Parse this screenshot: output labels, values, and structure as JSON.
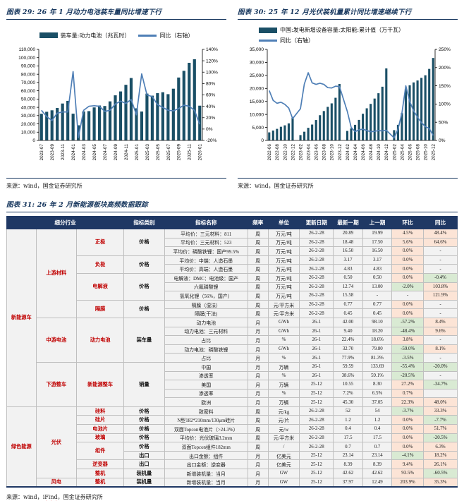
{
  "colors": {
    "navy": "#17375e",
    "header_bg": "#1f3864",
    "red": "#c00000",
    "bar": "#1a4f66",
    "line": "#4f7fb6",
    "peach": "#fce4d6",
    "green": "#d9ead3"
  },
  "figures": {
    "fig29": {
      "title": "图表 29: 26 年 1 月动力电池装车量同比增速下行",
      "legend_bar": "装车量:动力电池（兆瓦时）",
      "legend_line": "同比（右轴）",
      "source": "来源：wind，国金证券研究所"
    },
    "fig30": {
      "title": "图表 30: 25 年 12 月光伏装机量累计同比增速继续下行",
      "legend_bar": "中国:发电新增设备容量:太阳能:累计值（万千瓦）",
      "legend_line": "同比（右轴）",
      "source": "来源：wind，国金证券研究所"
    },
    "fig31": {
      "title": "图表 31: 26 年 2 月新能源板块高频数据跟踪",
      "source_prefix": "来源：wind，",
      "source_wavy": "iFind",
      "source_suffix": "，国金证券研究所"
    }
  },
  "chart_data": [
    {
      "type": "bar+line",
      "title": "26 年 1 月动力电池装车量同比增速下行",
      "x": [
        "2023-07",
        "2023-08",
        "2023-09",
        "2023-10",
        "2023-11",
        "2023-12",
        "2024-01",
        "2024-02",
        "2024-03",
        "2024-04",
        "2024-05",
        "2024-06",
        "2024-07",
        "2024-08",
        "2024-09",
        "2024-10",
        "2024-11",
        "2024-12",
        "2025-01",
        "2025-02",
        "2025-03",
        "2025-04",
        "2025-05",
        "2025-06",
        "2025-07",
        "2025-08",
        "2025-09",
        "2025-10",
        "2025-11",
        "2025-12",
        "2026-01"
      ],
      "series": [
        {
          "name": "装车量:动力电池（兆瓦时）",
          "type": "bar",
          "axis": "left",
          "values": [
            32200,
            34600,
            36400,
            39200,
            44600,
            47800,
            32300,
            18300,
            35000,
            35400,
            39900,
            42200,
            41600,
            47200,
            54500,
            59200,
            67200,
            75400,
            38800,
            34900,
            56600,
            54100,
            57100,
            58200,
            55900,
            62500,
            76000,
            84100,
            93800,
            98100,
            42000
          ]
        },
        {
          "name": "同比（右轴）",
          "type": "line",
          "axis": "right",
          "values": [
            33,
            22,
            15,
            28,
            30,
            30,
            101,
            -15,
            33,
            40,
            41,
            40,
            31,
            33,
            44,
            49,
            45,
            52,
            25,
            97,
            60,
            57,
            43,
            38,
            33,
            32,
            36,
            42,
            40,
            33,
            8.4
          ]
        }
      ],
      "left_axis": {
        "min": 0,
        "max": 110000,
        "step": 10000
      },
      "right_axis": {
        "min": -20,
        "max": 140,
        "step": 20,
        "unit": "%"
      },
      "x_tick_every": 2,
      "legend_position": "top",
      "grid": false
    },
    {
      "type": "bar+line",
      "title": "25 年 12 月光伏装机量累计同比增速继续下行",
      "x": [
        "2022-06",
        "2022-07",
        "2022-08",
        "2022-09",
        "2022-10",
        "2022-11",
        "2022-12",
        "2023-01",
        "2023-02",
        "2023-03",
        "2023-04",
        "2023-05",
        "2023-06",
        "2023-07",
        "2023-08",
        "2023-09",
        "2023-10",
        "2023-11",
        "2023-12",
        "2024-01",
        "2024-02",
        "2024-03",
        "2024-04",
        "2024-05",
        "2024-06",
        "2024-07",
        "2024-08",
        "2024-09",
        "2024-10",
        "2024-11",
        "2024-12",
        "2025-01",
        "2025-02",
        "2025-03",
        "2025-04",
        "2025-05",
        "2025-06",
        "2025-07",
        "2025-08",
        "2025-09",
        "2025-10",
        "2025-11",
        "2025-12"
      ],
      "series": [
        {
          "name": "中国:发电新增设备容量:太阳能:累计值（万千瓦）",
          "type": "bar",
          "axis": "left",
          "values": [
            3100,
            3800,
            4450,
            5250,
            5800,
            6550,
            8750,
            null,
            2050,
            3350,
            4850,
            6100,
            7850,
            9700,
            11300,
            12900,
            14250,
            16400,
            21700,
            null,
            3650,
            4600,
            6000,
            7900,
            10250,
            12350,
            14050,
            16100,
            18150,
            20650,
            27700,
            null,
            3950,
            6000,
            10500,
            19800,
            21200,
            22300,
            23050,
            24050,
            25050,
            27500,
            31700
          ]
        },
        {
          "name": "同比（右轴）",
          "type": "line",
          "axis": "right",
          "values": [
            137,
            110,
            102,
            105,
            99,
            89,
            60,
            null,
            87,
            155,
            186,
            158,
            154,
            157,
            154,
            145,
            144,
            149,
            148,
            null,
            80,
            36,
            24,
            29,
            31,
            27,
            24,
            25,
            27,
            26,
            28,
            null,
            7,
            31,
            75,
            150,
            107,
            81,
            64,
            49,
            38,
            33,
            14
          ]
        }
      ],
      "left_axis": {
        "min": 0,
        "max": 35000,
        "step": 5000
      },
      "right_axis": {
        "min": 0,
        "max": 250,
        "step": 50,
        "unit": "%"
      },
      "x_tick_every": 2,
      "legend_position": "top",
      "grid": false
    }
  ],
  "table": {
    "headers": {
      "industry": "细分行业",
      "category": "指标类别",
      "name": "指标名称",
      "freq": "频率",
      "unit": "单位",
      "date": "更新日期",
      "latest": "最新一期",
      "prev": "上一期",
      "mom": "环比",
      "yoy": "同比"
    },
    "col1_spans": [
      {
        "t": "新能源车",
        "n": 20
      },
      {
        "t": "绿色能源",
        "n": 9
      }
    ],
    "col2_spans": [
      {
        "t": "上游材料",
        "n": 10
      },
      {
        "t": "中游电池",
        "n": 5
      },
      {
        "t": "下游整车",
        "n": 5
      },
      {
        "t": "光伏",
        "n": 8
      },
      {
        "t": "风电",
        "n": 1
      }
    ],
    "col3_spans": [
      {
        "t": "正极",
        "n": 3
      },
      {
        "t": "负极",
        "n": 2
      },
      {
        "t": "电解液",
        "n": 3
      },
      {
        "t": "隔膜",
        "n": 2
      },
      {
        "t": "动力电池",
        "n": 5
      },
      {
        "t": "新能源整车",
        "n": 5
      },
      {
        "t": "硅料",
        "n": 1
      },
      {
        "t": "硅片",
        "n": 1
      },
      {
        "t": "电池片",
        "n": 1
      },
      {
        "t": "玻璃",
        "n": 1
      },
      {
        "t": "组件",
        "n": 2
      },
      {
        "t": "逆变器",
        "n": 1
      },
      {
        "t": "整机",
        "n": 1
      },
      {
        "t": "整机",
        "n": 1
      }
    ],
    "col4_spans": [
      {
        "t": "价格",
        "n": 3
      },
      {
        "t": "价格",
        "n": 2
      },
      {
        "t": "价格",
        "n": 3
      },
      {
        "t": "价格",
        "n": 2
      },
      {
        "t": "装车量",
        "n": 5
      },
      {
        "t": "销量",
        "n": 5
      },
      {
        "t": "价格",
        "n": 1
      },
      {
        "t": "价格",
        "n": 1
      },
      {
        "t": "价格",
        "n": 1
      },
      {
        "t": "价格",
        "n": 1
      },
      {
        "t": "价格",
        "n": 1
      },
      {
        "t": "出口",
        "n": 1
      },
      {
        "t": "出口",
        "n": 1
      },
      {
        "t": "装机量",
        "n": 1
      },
      {
        "t": "装机量",
        "n": 1
      }
    ],
    "rows": [
      {
        "name": "平均价：三元材料：811",
        "freq": "周",
        "unit": "万元/吨",
        "date": "26-2-28",
        "latest": "20.89",
        "prev": "19.99",
        "mom": "4.5%",
        "momc": "p",
        "yoy": "48.4%",
        "yoyc": "p"
      },
      {
        "name": "平均价：三元材料：523",
        "freq": "周",
        "unit": "万元/吨",
        "date": "26-2-28",
        "latest": "18.48",
        "prev": "17.50",
        "mom": "5.6%",
        "momc": "p",
        "yoy": "64.6%",
        "yoyc": "p"
      },
      {
        "name": "平均价：磷酸铁锂：国产99.5%",
        "freq": "周",
        "unit": "万元/吨",
        "date": "26-2-28",
        "latest": "16.50",
        "prev": "16.50",
        "mom": "0.0%",
        "momc": "p",
        "yoy": "-",
        "yoyc": "n"
      },
      {
        "name": "平均价：中端：人造石墨",
        "freq": "周",
        "unit": "万元/吨",
        "date": "26-2-28",
        "latest": "3.17",
        "prev": "3.17",
        "mom": "0.0%",
        "momc": "p",
        "yoy": "-",
        "yoyc": "n"
      },
      {
        "name": "平均价：高端：人造石墨",
        "freq": "周",
        "unit": "万元/吨",
        "date": "26-2-28",
        "latest": "4.83",
        "prev": "4.83",
        "mom": "0.0%",
        "momc": "p",
        "yoy": "-",
        "yoyc": "n"
      },
      {
        "name": "电解液：DMC：电池级：国产",
        "freq": "周",
        "unit": "万元/吨",
        "date": "26-2-28",
        "latest": "0.50",
        "prev": "0.50",
        "mom": "0.0%",
        "momc": "p",
        "yoy": "-0.4%",
        "yoyc": "g"
      },
      {
        "name": "六氟磷酸锂",
        "freq": "周",
        "unit": "万元/吨",
        "date": "26-2-28",
        "latest": "12.74",
        "prev": "13.00",
        "mom": "-2.0%",
        "momc": "g",
        "yoy": "103.8%",
        "yoyc": "p"
      },
      {
        "name": "氢氧化锂（56%，国产）",
        "freq": "周",
        "unit": "万元/吨",
        "date": "26-2-28",
        "latest": "15.58",
        "prev": "-",
        "mom": "-",
        "momc": "n",
        "yoy": "121.9%",
        "yoyc": "p"
      },
      {
        "name": "隔膜（湿法）",
        "freq": "周",
        "unit": "元/平方米",
        "date": "26-2-28",
        "latest": "0.77",
        "prev": "0.77",
        "mom": "0.0%",
        "momc": "p",
        "yoy": "-",
        "yoyc": "n"
      },
      {
        "name": "隔膜(干法)",
        "freq": "周",
        "unit": "元/平方米",
        "date": "26-2-28",
        "latest": "0.45",
        "prev": "0.45",
        "mom": "0.0%",
        "momc": "p",
        "yoy": "-",
        "yoyc": "n"
      },
      {
        "name": "动力电池",
        "freq": "月",
        "unit": "GWh",
        "date": "26-1",
        "latest": "42.00",
        "prev": "98.10",
        "mom": "-57.2%",
        "momc": "g",
        "yoy": "8.4%",
        "yoyc": "p"
      },
      {
        "name": "动力电池：三元材料",
        "freq": "月",
        "unit": "GWh",
        "date": "26-1",
        "latest": "9.40",
        "prev": "18.20",
        "mom": "-48.4%",
        "momc": "g",
        "yoy": "9.6%",
        "yoyc": "p"
      },
      {
        "name": "占比",
        "freq": "月",
        "unit": "%",
        "date": "26-1",
        "latest": "22.4%",
        "prev": "18.6%",
        "mom": "3.8%",
        "momc": "p",
        "yoy": "-",
        "yoyc": "n"
      },
      {
        "name": "动力电池：磷酸铁锂",
        "freq": "月",
        "unit": "GWh",
        "date": "26-1",
        "latest": "32.70",
        "prev": "79.80",
        "mom": "-59.0%",
        "momc": "g",
        "yoy": "8.1%",
        "yoyc": "p"
      },
      {
        "name": "占比",
        "freq": "月",
        "unit": "%",
        "date": "26-1",
        "latest": "77.9%",
        "prev": "81.3%",
        "mom": "-3.5%",
        "momc": "g",
        "yoy": "-",
        "yoyc": "n"
      },
      {
        "name": "中国",
        "freq": "月",
        "unit": "万辆",
        "date": "26-1",
        "latest": "59.59",
        "prev": "133.69",
        "mom": "-55.4%",
        "momc": "g",
        "yoy": "-20.0%",
        "yoyc": "g"
      },
      {
        "name": "渗透率",
        "freq": "月",
        "unit": "%",
        "date": "26-1",
        "latest": "38.6%",
        "prev": "59.1%",
        "mom": "-20.5%",
        "momc": "g",
        "yoy": "-",
        "yoyc": "n"
      },
      {
        "name": "美国",
        "freq": "月",
        "unit": "万辆",
        "date": "25-12",
        "latest": "10.55",
        "prev": "8.30",
        "mom": "27.2%",
        "momc": "p",
        "yoy": "-34.7%",
        "yoyc": "g"
      },
      {
        "name": "渗透率",
        "freq": "月",
        "unit": "%",
        "date": "25-12",
        "latest": "7.2%",
        "prev": "6.5%",
        "mom": "0.7%",
        "momc": "p",
        "yoy": "",
        "yoyc": "n"
      },
      {
        "name": "欧洲",
        "freq": "月",
        "unit": "万辆",
        "date": "25-12",
        "latest": "45.30",
        "prev": "37.05",
        "mom": "22.3%",
        "momc": "p",
        "yoy": "48.0%",
        "yoyc": "p"
      },
      {
        "name": "致密料",
        "freq": "周",
        "unit": "元/kg",
        "date": "26-2-28",
        "latest": "52",
        "prev": "54",
        "mom": "-3.7%",
        "momc": "g",
        "yoy": "33.3%",
        "yoyc": "p"
      },
      {
        "name": "N型182*210mm/130μm硅片",
        "freq": "周",
        "unit": "元/片",
        "date": "26-2-28",
        "latest": "1.2",
        "prev": "1.2",
        "mom": "0.0%",
        "momc": "p",
        "yoy": "-7.7%",
        "yoyc": "g"
      },
      {
        "name": "双面Topcon电池片（>24.3%）",
        "freq": "周",
        "unit": "元/w",
        "date": "26-2-28",
        "latest": "0.4",
        "prev": "0.4",
        "mom": "0.0%",
        "momc": "p",
        "yoy": "51.7%",
        "yoyc": "p"
      },
      {
        "name": "平均价：光伏玻璃3.2mm",
        "freq": "周",
        "unit": "元/平方米",
        "date": "26-2-28",
        "latest": "17.5",
        "prev": "17.5",
        "mom": "0.0%",
        "momc": "p",
        "yoy": "-20.5%",
        "yoyc": "g"
      },
      {
        "name": "双面Topcon组件182mm",
        "freq": "周",
        "unit": "/",
        "date": "26-2-28",
        "latest": "0.7",
        "prev": "0.7",
        "mom": "0.0%",
        "momc": "p",
        "yoy": "6.3%",
        "yoyc": "p"
      },
      {
        "name": "出口金额：组件",
        "freq": "月",
        "unit": "亿美元",
        "date": "25-12",
        "latest": "23.14",
        "prev": "23.14",
        "mom": "-4.1%",
        "momc": "g",
        "yoy": "18.2%",
        "yoyc": "p"
      },
      {
        "name": "出口金额：逆变器",
        "freq": "月",
        "unit": "亿美元",
        "date": "25-12",
        "latest": "8.39",
        "prev": "8.39",
        "mom": "9.4%",
        "momc": "p",
        "yoy": "26.1%",
        "yoyc": "p"
      },
      {
        "name": "新增装机量：当月",
        "freq": "月",
        "unit": "GW",
        "date": "25-12",
        "latest": "42.62",
        "prev": "42.62",
        "mom": "93.5%",
        "momc": "p",
        "yoy": "-60.5%",
        "yoyc": "g"
      },
      {
        "name": "新增装机量：当月",
        "freq": "月",
        "unit": "GW",
        "date": "25-12",
        "latest": "37.97",
        "prev": "12.49",
        "mom": "203.9%",
        "momc": "p",
        "yoy": "35.3%",
        "yoyc": "p"
      }
    ]
  }
}
